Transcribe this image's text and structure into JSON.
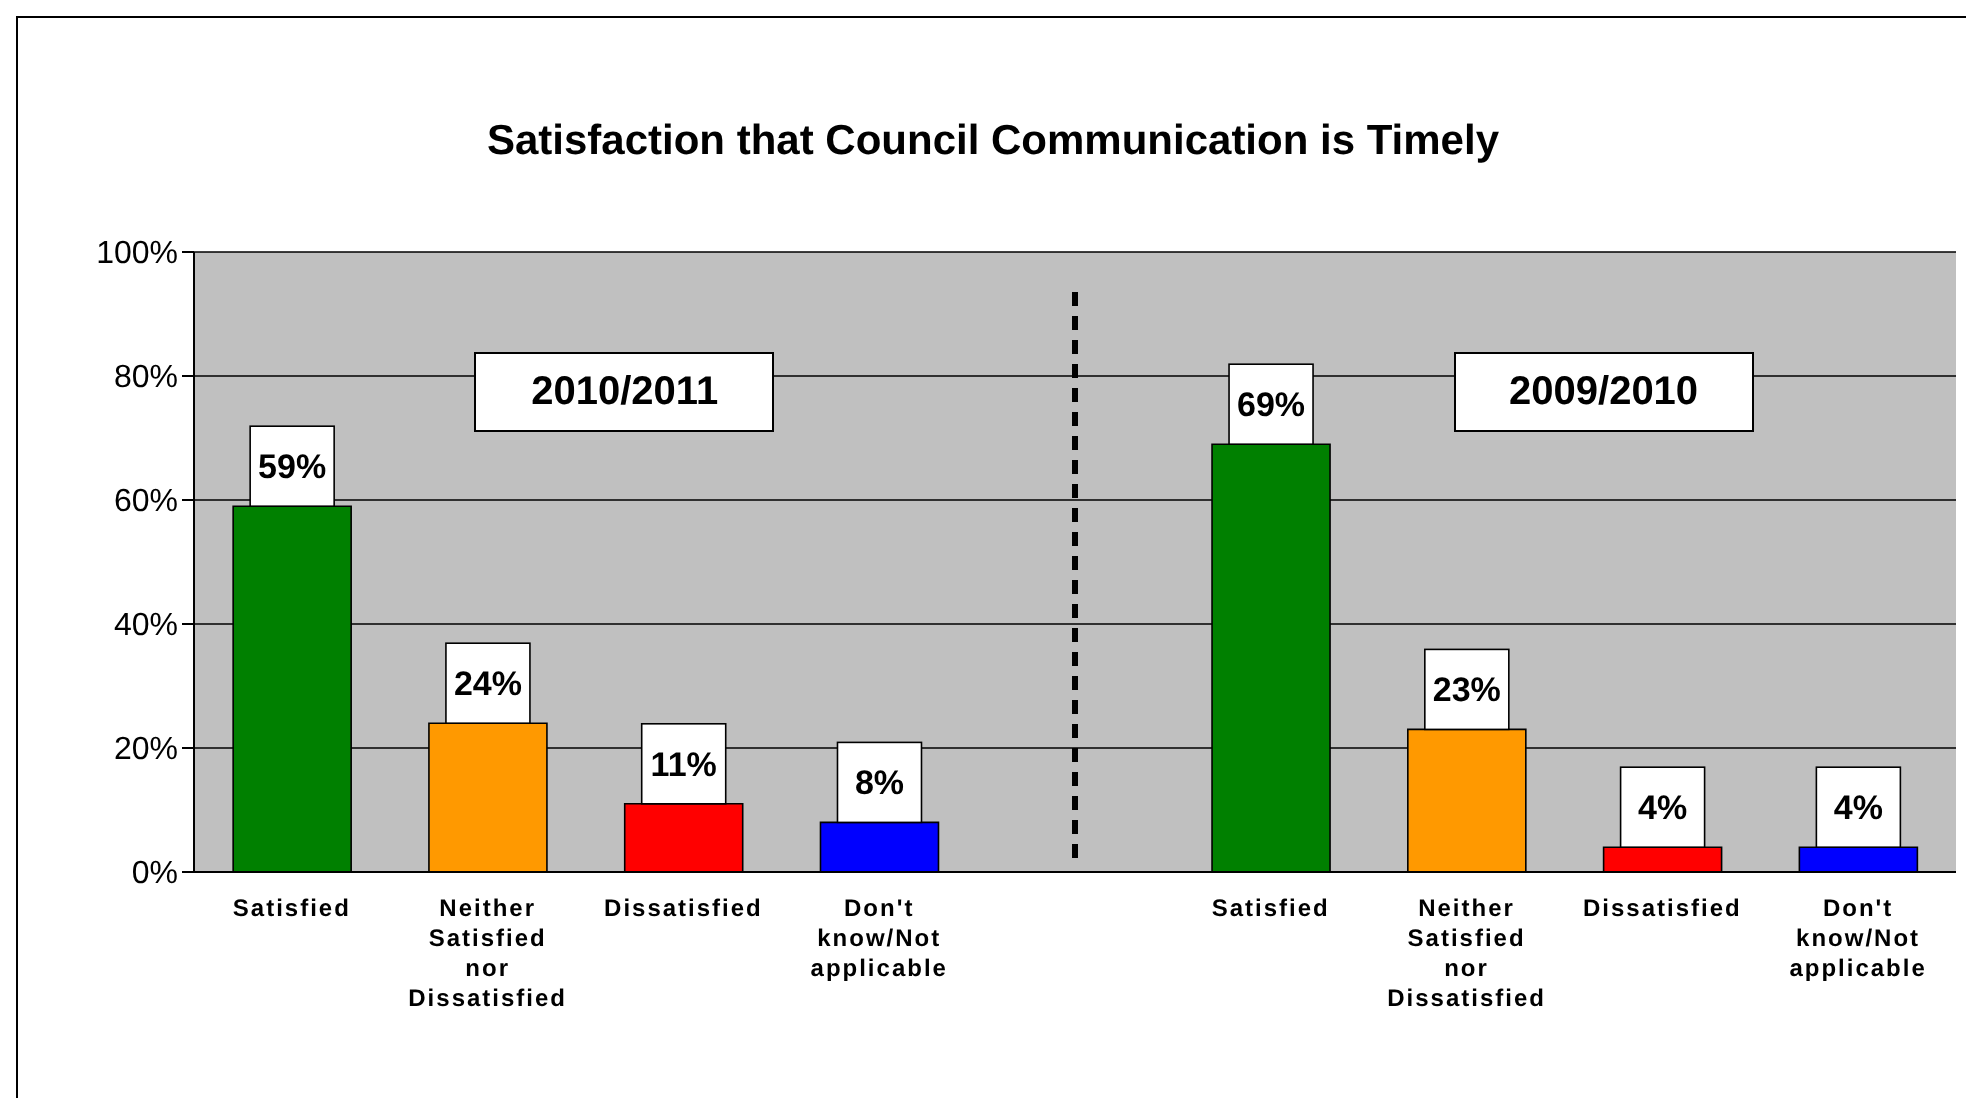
{
  "chart_data": {
    "type": "bar",
    "title": "Satisfaction that Council Communication is Timely",
    "categories": [
      "Satisfied",
      "Neither Satisfied nor Dissatisfied",
      "Dissatisfied",
      "Don't know/Not applicable",
      null,
      "Satisfied",
      "Neither Satisfied nor Dissatisfied",
      "Dissatisfied",
      "Don't know/Not applicable"
    ],
    "values": [
      59,
      24,
      11,
      8,
      null,
      69,
      23,
      4,
      4
    ],
    "colors": [
      "#008000",
      "#ff9900",
      "#ff0000",
      "#0000ff",
      "#c0c0c0",
      "#008000",
      "#ff9900",
      "#ff0000",
      "#0000ff"
    ],
    "value_labels": [
      "59%",
      "24%",
      "11%",
      "8%",
      null,
      "69%",
      "23%",
      "4%",
      "4%"
    ],
    "ylim": [
      0,
      100
    ],
    "yticks": [
      {
        "value": 0,
        "label": "0%"
      },
      {
        "value": 20,
        "label": "20%"
      },
      {
        "value": 40,
        "label": "40%"
      },
      {
        "value": 60,
        "label": "60%"
      },
      {
        "value": 80,
        "label": "80%"
      },
      {
        "value": 100,
        "label": "100%"
      }
    ],
    "grid": "y",
    "annotations": [
      "2010/2011",
      "2009/2010"
    ]
  }
}
